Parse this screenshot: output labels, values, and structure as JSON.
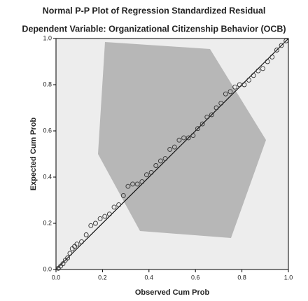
{
  "chart_data": {
    "type": "scatter",
    "title": "Normal P-P Plot of Regression Standardized Residual",
    "subtitle": "Dependent Variable: Organizational Citizenship Behavior (OCB)",
    "x_label": "Observed Cum Prob",
    "y_label": "Expected Cum Prob",
    "xlim": [
      0,
      1
    ],
    "ylim": [
      0,
      1
    ],
    "xticks": [
      {
        "value": 0,
        "label": "0.0"
      },
      0.2,
      0.4,
      0.6,
      0.8,
      {
        "value": 1,
        "label": "1.0"
      }
    ],
    "yticks": [
      {
        "value": 0,
        "label": "0.0"
      },
      0.2,
      0.4,
      0.6,
      0.8,
      {
        "value": 1,
        "label": "1.0"
      }
    ],
    "color": "#333333",
    "x": [
      0.01,
      0.02,
      0.03,
      0.04,
      0.05,
      0.06,
      0.07,
      0.08,
      0.09,
      0.11,
      0.13,
      0.15,
      0.17,
      0.19,
      0.21,
      0.23,
      0.25,
      0.27,
      0.29,
      0.31,
      0.33,
      0.35,
      0.37,
      0.39,
      0.41,
      0.43,
      0.45,
      0.47,
      0.49,
      0.51,
      0.53,
      0.55,
      0.57,
      0.59,
      0.61,
      0.63,
      0.65,
      0.67,
      0.69,
      0.71,
      0.73,
      0.75,
      0.77,
      0.79,
      0.81,
      0.83,
      0.85,
      0.87,
      0.89,
      0.91,
      0.93,
      0.95,
      0.97,
      0.99
    ],
    "values": [
      0.005,
      0.015,
      0.025,
      0.04,
      0.05,
      0.07,
      0.09,
      0.1,
      0.11,
      0.12,
      0.15,
      0.19,
      0.2,
      0.22,
      0.23,
      0.24,
      0.27,
      0.28,
      0.32,
      0.36,
      0.37,
      0.37,
      0.38,
      0.41,
      0.42,
      0.45,
      0.47,
      0.48,
      0.52,
      0.53,
      0.56,
      0.57,
      0.57,
      0.58,
      0.61,
      0.63,
      0.66,
      0.67,
      0.7,
      0.72,
      0.76,
      0.77,
      0.79,
      0.8,
      0.8,
      0.82,
      0.84,
      0.86,
      0.87,
      0.9,
      0.92,
      0.95,
      0.97,
      0.99
    ]
  }
}
